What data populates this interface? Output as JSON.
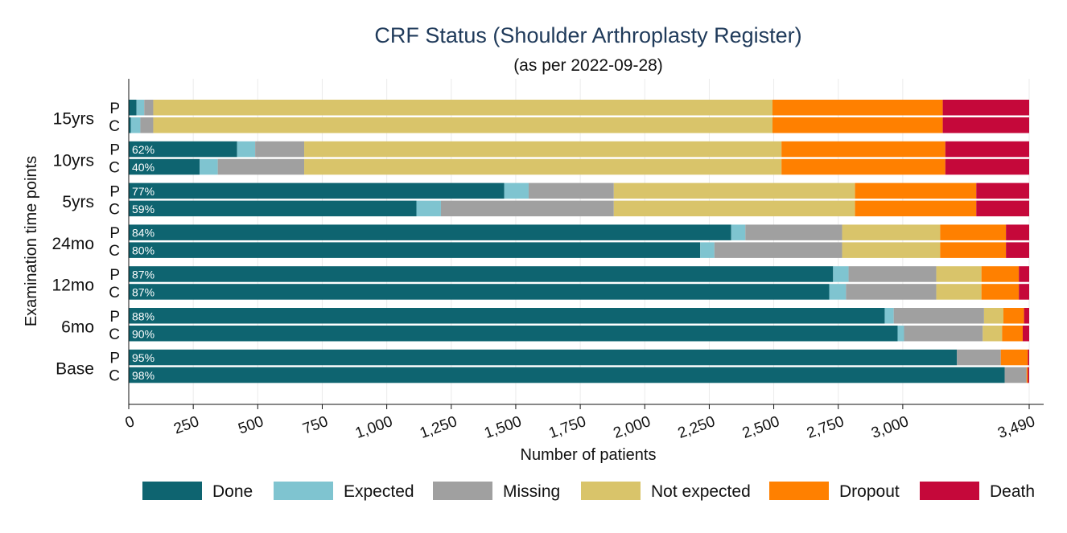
{
  "chart_data": {
    "type": "bar",
    "orientation": "horizontal",
    "stacked": true,
    "title": "CRF Status (Shoulder Arthroplasty Register)",
    "subtitle": "(as per 2022-09-28)",
    "xlabel": "Number of patients",
    "ylabel": "Examination time points",
    "xlim": [
      0,
      3490
    ],
    "xticks": [
      0,
      250,
      500,
      750,
      1000,
      1250,
      1500,
      1750,
      2000,
      2250,
      2500,
      2750,
      3000,
      3490
    ],
    "xtick_labels": [
      "0",
      "250",
      "500",
      "750",
      "1,000",
      "1,250",
      "1,500",
      "1,750",
      "2,000",
      "2,250",
      "2,500",
      "2,750",
      "3,000",
      "3,490"
    ],
    "grid": true,
    "legend_position": "bottom",
    "series_names": [
      "Done",
      "Expected",
      "Missing",
      "Not expected",
      "Dropout",
      "Death"
    ],
    "series_colors": [
      "#0e6470",
      "#7fc4d0",
      "#a0a0a0",
      "#d9c46a",
      "#ff8000",
      "#c5083a"
    ],
    "categories": [
      "15yrs",
      "10yrs",
      "5yrs",
      "24mo",
      "12mo",
      "6mo",
      "Base"
    ],
    "groups": [
      {
        "label": "15yrs",
        "rows": [
          {
            "code": "P",
            "pct": "",
            "values": [
              30,
              30,
              35,
              2400,
              660,
              335
            ]
          },
          {
            "code": "C",
            "pct": "",
            "values": [
              8,
              37,
              50,
              2400,
              660,
              335
            ]
          }
        ]
      },
      {
        "label": "10yrs",
        "rows": [
          {
            "code": "P",
            "pct": "62%",
            "values": [
              420,
              70,
              190,
              1850,
              635,
              325
            ]
          },
          {
            "code": "C",
            "pct": "40%",
            "values": [
              275,
              70,
              335,
              1850,
              635,
              325
            ]
          }
        ]
      },
      {
        "label": "5yrs",
        "rows": [
          {
            "code": "P",
            "pct": "77%",
            "values": [
              1455,
              95,
              330,
              935,
              470,
              205
            ]
          },
          {
            "code": "C",
            "pct": "59%",
            "values": [
              1115,
              95,
              670,
              935,
              470,
              205
            ]
          }
        ]
      },
      {
        "label": "24mo",
        "rows": [
          {
            "code": "P",
            "pct": "84%",
            "values": [
              2335,
              55,
              375,
              380,
              255,
              90
            ]
          },
          {
            "code": "C",
            "pct": "80%",
            "values": [
              2215,
              55,
              495,
              380,
              255,
              90
            ]
          }
        ]
      },
      {
        "label": "12mo",
        "rows": [
          {
            "code": "P",
            "pct": "87%",
            "values": [
              2730,
              60,
              340,
              175,
              145,
              40
            ]
          },
          {
            "code": "C",
            "pct": "87%",
            "values": [
              2715,
              65,
              350,
              175,
              145,
              40
            ]
          }
        ]
      },
      {
        "label": "6mo",
        "rows": [
          {
            "code": "P",
            "pct": "88%",
            "values": [
              2930,
              35,
              350,
              75,
              80,
              20
            ]
          },
          {
            "code": "C",
            "pct": "90%",
            "values": [
              2980,
              25,
              305,
              75,
              80,
              25
            ]
          }
        ]
      },
      {
        "label": "Base",
        "rows": [
          {
            "code": "P",
            "pct": "95%",
            "values": [
              3210,
              0,
              170,
              0,
              105,
              5
            ]
          },
          {
            "code": "C",
            "pct": "98%",
            "values": [
              3395,
              0,
              85,
              0,
              5,
              5
            ]
          }
        ]
      }
    ]
  }
}
